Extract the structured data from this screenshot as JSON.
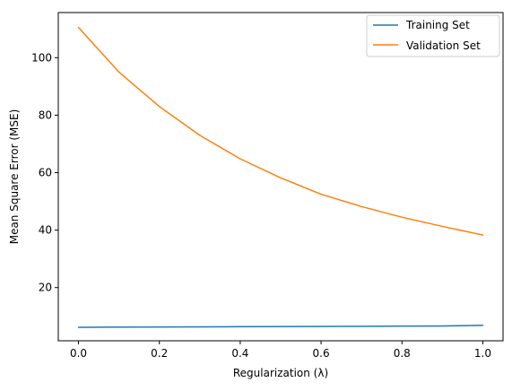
{
  "chart_data": {
    "type": "line",
    "title": "",
    "xlabel": "Regularization (λ)",
    "ylabel": "Mean Square Error (MSE)",
    "xlim": [
      -0.05,
      1.05
    ],
    "ylim": [
      1.5,
      115.7
    ],
    "xticks": [
      0.0,
      0.2,
      0.4,
      0.6,
      0.8,
      1.0
    ],
    "xtick_labels": [
      "0.0",
      "0.2",
      "0.4",
      "0.6",
      "0.8",
      "1.0"
    ],
    "yticks": [
      20,
      40,
      60,
      80,
      100
    ],
    "ytick_labels": [
      "20",
      "40",
      "60",
      "80",
      "100"
    ],
    "grid": false,
    "legend_position": "top-right",
    "x": [
      0.0,
      0.1,
      0.2,
      0.3,
      0.4,
      0.5,
      0.6,
      0.7,
      0.8,
      0.9,
      1.0
    ],
    "series": [
      {
        "name": "Training Set",
        "color": "#1f77b4",
        "values": [
          6.2,
          6.25,
          6.3,
          6.35,
          6.4,
          6.45,
          6.5,
          6.55,
          6.6,
          6.65,
          6.9
        ]
      },
      {
        "name": "Validation Set",
        "color": "#ff7f0e",
        "values": [
          110.5,
          95.0,
          83.0,
          73.0,
          64.8,
          58.2,
          52.5,
          48.2,
          44.5,
          41.3,
          38.3
        ]
      }
    ]
  }
}
